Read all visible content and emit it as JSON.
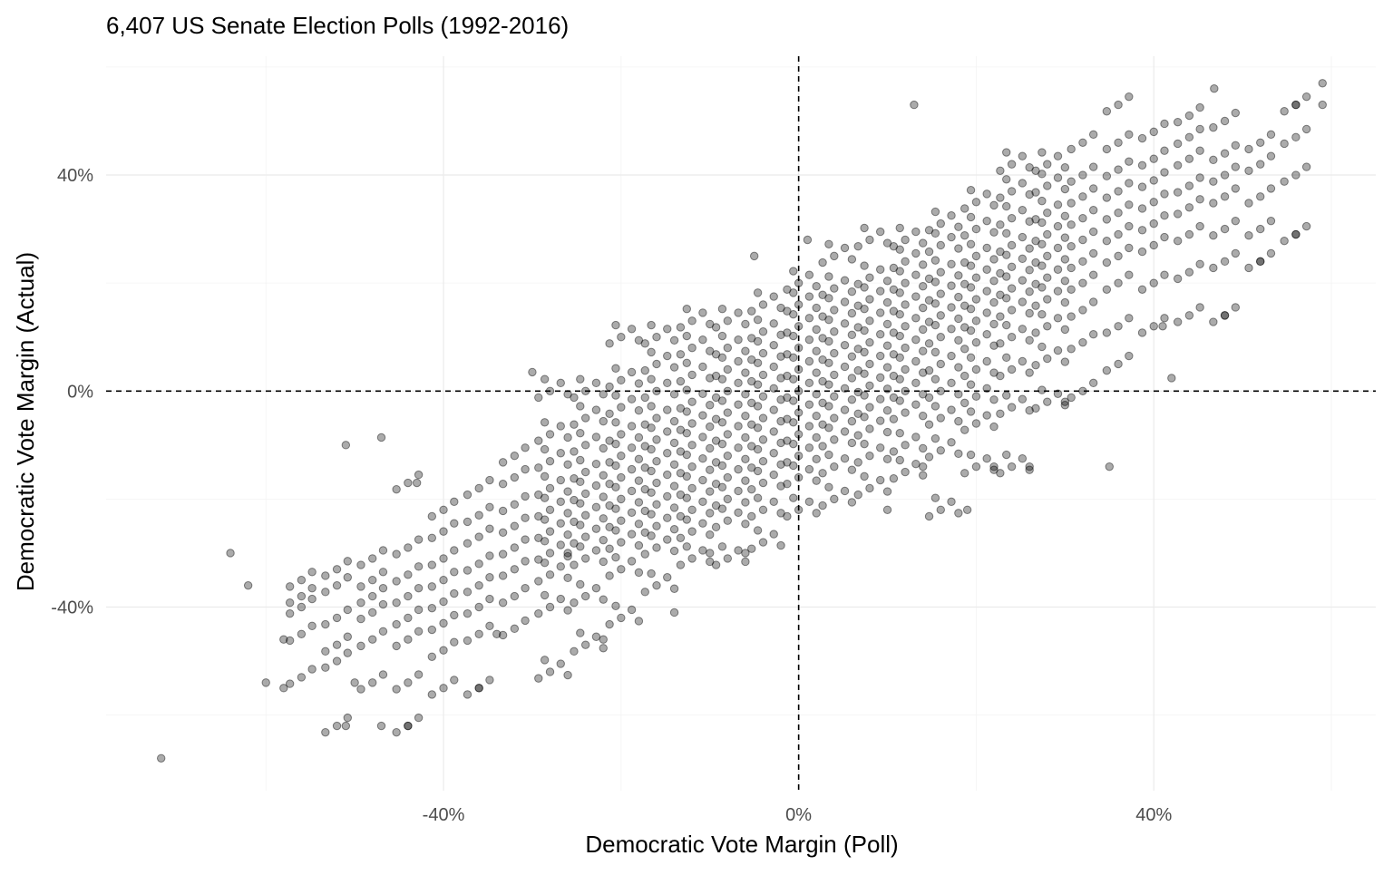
{
  "chart_data": {
    "type": "scatter",
    "title": "6,407 US Senate Election Polls (1992-2016)",
    "xlabel": "Democratic Vote Margin (Poll)",
    "ylabel": "Democratic Vote Margin (Actual)",
    "xlim": [
      -78,
      65
    ],
    "ylim": [
      -74,
      62
    ],
    "x_ticks": [
      {
        "value": -40,
        "label": "-40%"
      },
      {
        "value": 0,
        "label": "0%"
      },
      {
        "value": 40,
        "label": "40%"
      }
    ],
    "y_ticks": [
      {
        "value": -40,
        "label": "-40%"
      },
      {
        "value": 0,
        "label": "0%"
      },
      {
        "value": 40,
        "label": "40%"
      }
    ],
    "x_minor": [
      -60,
      -20,
      20,
      60
    ],
    "y_minor": [
      -60,
      -20,
      20,
      60
    ],
    "reference_lines": {
      "x": 0,
      "y": 0,
      "style": "dashed"
    },
    "grid": true,
    "point_count_sampled_note": "approximate sample of the 6,407 points",
    "columns": [
      {
        "x": -56,
        "ys": [
          -38,
          -45,
          -53,
          -35,
          -40
        ]
      },
      {
        "x": -52,
        "ys": [
          -50,
          -42,
          -36,
          -33,
          -47,
          -62
        ]
      },
      {
        "x": -48,
        "ys": [
          -54,
          -46,
          -41,
          -38,
          -35,
          -31
        ]
      },
      {
        "x": -44,
        "ys": [
          -62,
          -54,
          -46,
          -42,
          -38,
          -34,
          -29,
          -17
        ]
      },
      {
        "x": -40,
        "ys": [
          -55,
          -48,
          -43,
          -39,
          -35,
          -31,
          -26,
          -22
        ]
      },
      {
        "x": -36,
        "ys": [
          -55,
          -45,
          -40,
          -36,
          -32,
          -27,
          -23,
          -18
        ]
      },
      {
        "x": -32,
        "ys": [
          -44,
          -38,
          -33,
          -29,
          -25,
          -21,
          -16,
          -12
        ]
      },
      {
        "x": -28,
        "ys": [
          -52,
          -40,
          -34,
          -30,
          -26,
          -22,
          -18,
          -13,
          -8,
          0
        ]
      },
      {
        "x": -24,
        "ys": [
          -47,
          -38,
          -31,
          -27,
          -23,
          -19,
          -15,
          -10,
          -5,
          0
        ]
      },
      {
        "x": -20,
        "ys": [
          -42,
          -33,
          -28,
          -24,
          -20,
          -16,
          -12,
          -8,
          -3,
          2,
          10
        ]
      },
      {
        "x": -16,
        "ys": [
          -36,
          -29,
          -25,
          -21,
          -17,
          -13,
          -9,
          -5,
          0,
          5,
          10
        ]
      },
      {
        "x": -12,
        "ys": [
          -31,
          -26,
          -22,
          -18,
          -14,
          -10,
          -6,
          -2,
          3,
          8,
          13
        ]
      },
      {
        "x": -8,
        "ys": [
          -31,
          -24,
          -20,
          -16,
          -12,
          -8,
          -4,
          0,
          4,
          8,
          13
        ]
      },
      {
        "x": -4,
        "ys": [
          -28,
          -22,
          -17,
          -13,
          -9,
          -5,
          -1,
          3,
          7,
          11,
          16
        ]
      },
      {
        "x": 0,
        "ys": [
          -22,
          -16,
          -12,
          -8,
          -4,
          0,
          4,
          8,
          12,
          16,
          20
        ]
      },
      {
        "x": 4,
        "ys": [
          -20,
          -14,
          -9,
          -5,
          -1,
          3,
          7,
          11,
          15,
          19,
          25
        ]
      },
      {
        "x": 8,
        "ys": [
          -18,
          -12,
          -7,
          -3,
          1,
          5,
          9,
          13,
          17,
          21,
          28
        ]
      },
      {
        "x": 12,
        "ys": [
          -15,
          -10,
          -4,
          0,
          4,
          8,
          12,
          16,
          20,
          24,
          28
        ]
      },
      {
        "x": 16,
        "ys": [
          -22,
          -11,
          -5,
          0,
          5,
          10,
          14,
          18,
          22,
          27,
          31
        ]
      },
      {
        "x": 20,
        "ys": [
          -14,
          -6,
          -1,
          4,
          9,
          13,
          17,
          21,
          25,
          30,
          35
        ]
      },
      {
        "x": 24,
        "ys": [
          -14,
          -3,
          4,
          10,
          15,
          19,
          23,
          27,
          32,
          37,
          42
        ]
      },
      {
        "x": 28,
        "ys": [
          -2,
          6,
          12,
          17,
          21,
          25,
          29,
          33,
          38,
          42
        ]
      },
      {
        "x": 32,
        "ys": [
          0,
          9,
          15,
          20,
          24,
          28,
          32,
          36,
          40,
          46
        ]
      },
      {
        "x": 36,
        "ys": [
          5,
          12,
          20,
          25,
          29,
          33,
          37,
          41,
          46,
          53
        ]
      },
      {
        "x": 40,
        "ys": [
          12,
          20,
          27,
          31,
          35,
          39,
          43,
          48
        ]
      },
      {
        "x": 44,
        "ys": [
          14,
          22,
          29,
          34,
          38,
          43,
          47,
          51
        ]
      },
      {
        "x": 48,
        "ys": [
          14,
          24,
          30,
          36,
          40,
          44,
          50
        ]
      },
      {
        "x": 52,
        "ys": [
          24,
          30,
          36,
          42,
          46
        ]
      },
      {
        "x": 56,
        "ys": [
          29,
          40,
          47,
          53
        ]
      }
    ],
    "outliers": [
      [
        -71.8,
        -68
      ],
      [
        -64,
        -30
      ],
      [
        13,
        53
      ],
      [
        46.8,
        56
      ],
      [
        59,
        57
      ],
      [
        59,
        53
      ],
      [
        35,
        -14
      ],
      [
        19,
        -22
      ],
      [
        42,
        2.4
      ],
      [
        -14,
        -41
      ],
      [
        -43,
        -17
      ],
      [
        -51,
        -10
      ],
      [
        -47,
        -8.6
      ],
      [
        -30,
        3.5
      ],
      [
        -5,
        25
      ],
      [
        1,
        28
      ],
      [
        -60,
        -54
      ],
      [
        -58,
        -55
      ],
      [
        -47,
        -62
      ],
      [
        -51,
        -62
      ],
      [
        -44,
        -62
      ],
      [
        -36,
        -55
      ],
      [
        56,
        53
      ],
      [
        56,
        29
      ],
      [
        52,
        24
      ],
      [
        48,
        14
      ],
      [
        41,
        12
      ],
      [
        -62,
        -36
      ],
      [
        -58,
        -46
      ],
      [
        -50,
        -54
      ],
      [
        -34,
        -45
      ],
      [
        -22,
        -46
      ],
      [
        -26,
        -30
      ],
      [
        26,
        -14
      ],
      [
        22,
        -14
      ],
      [
        30,
        -2
      ],
      [
        14,
        -14
      ],
      [
        10,
        -22
      ],
      [
        -10,
        -30
      ],
      [
        -6,
        -30
      ]
    ]
  }
}
